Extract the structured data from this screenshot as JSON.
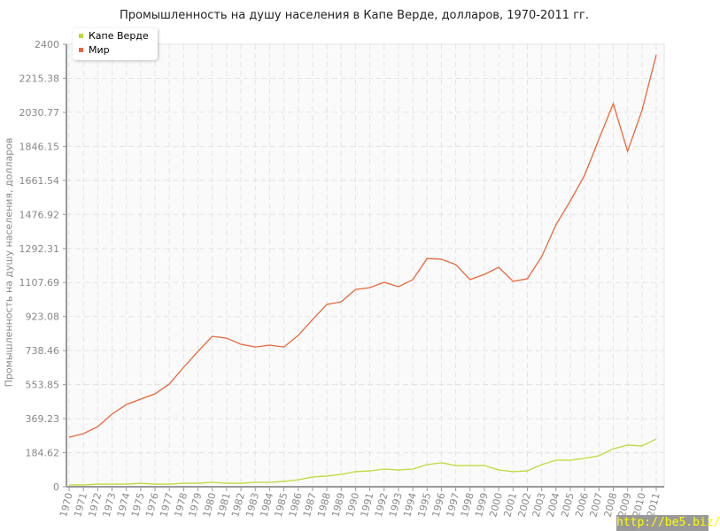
{
  "chart_data": {
    "type": "line",
    "title": "Промышленность на душу населения в Капе Верде, долларов, 1970-2011 гг.",
    "ylabel": "Промышленность на душу населения, долларов",
    "xlabel": "",
    "ylim": [
      0,
      2400
    ],
    "yticks": [
      "0",
      "184.62",
      "369.23",
      "553.85",
      "738.46",
      "923.08",
      "1107.69",
      "1292.31",
      "1476.92",
      "1661.54",
      "1846.15",
      "2030.77",
      "2215.38",
      "2400"
    ],
    "grid": true,
    "legend_position": "top-left",
    "x": [
      1970,
      1971,
      1972,
      1973,
      1974,
      1975,
      1976,
      1977,
      1978,
      1979,
      1980,
      1981,
      1982,
      1983,
      1984,
      1985,
      1986,
      1987,
      1988,
      1989,
      1990,
      1991,
      1992,
      1993,
      1994,
      1995,
      1996,
      1997,
      1998,
      1999,
      2000,
      2001,
      2002,
      2003,
      2004,
      2005,
      2006,
      2007,
      2008,
      2009,
      2010,
      2011
    ],
    "series": [
      {
        "name": "Капе Верде",
        "color": "#bddb3a",
        "values": [
          10,
          10,
          14,
          14,
          14,
          19,
          14,
          14,
          19,
          19,
          24,
          19,
          19,
          24,
          24,
          29,
          38,
          53,
          58,
          67,
          82,
          86,
          96,
          91,
          96,
          120,
          130,
          115,
          115,
          115,
          91,
          82,
          86,
          120,
          144,
          144,
          154,
          168,
          206,
          226,
          221,
          259
        ]
      },
      {
        "name": "Мир",
        "color": "#e8673a",
        "values": [
          269,
          288,
          326,
          394,
          446,
          475,
          504,
          557,
          648,
          734,
          816,
          806,
          773,
          758,
          768,
          758,
          821,
          907,
          989,
          1003,
          1070,
          1080,
          1109,
          1085,
          1123,
          1238,
          1234,
          1205,
          1123,
          1152,
          1190,
          1114,
          1128,
          1248,
          1421,
          1550,
          1690,
          1886,
          2078,
          1819,
          2040,
          2342
        ]
      }
    ]
  },
  "watermark": "http://be5.biz/"
}
